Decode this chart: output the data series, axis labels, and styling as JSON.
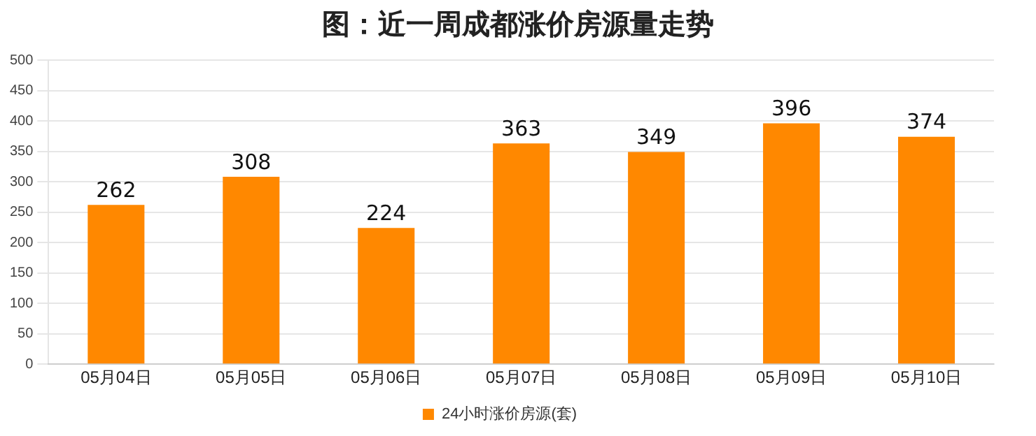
{
  "chart_data": {
    "type": "bar",
    "title": "图：近一周成都涨价房源量走势",
    "categories": [
      "05月04日",
      "05月05日",
      "05月06日",
      "05月07日",
      "05月08日",
      "05月09日",
      "05月10日"
    ],
    "series": [
      {
        "name": "24小时涨价房源(套)",
        "color": "#ff8800",
        "values": [
          262,
          308,
          224,
          363,
          349,
          396,
          374
        ]
      }
    ],
    "ylim": [
      0,
      500
    ],
    "yticks": [
      0,
      50,
      100,
      150,
      200,
      250,
      300,
      350,
      400,
      450,
      500
    ],
    "grid": "y",
    "legend": "bottom",
    "data_labels": true
  }
}
